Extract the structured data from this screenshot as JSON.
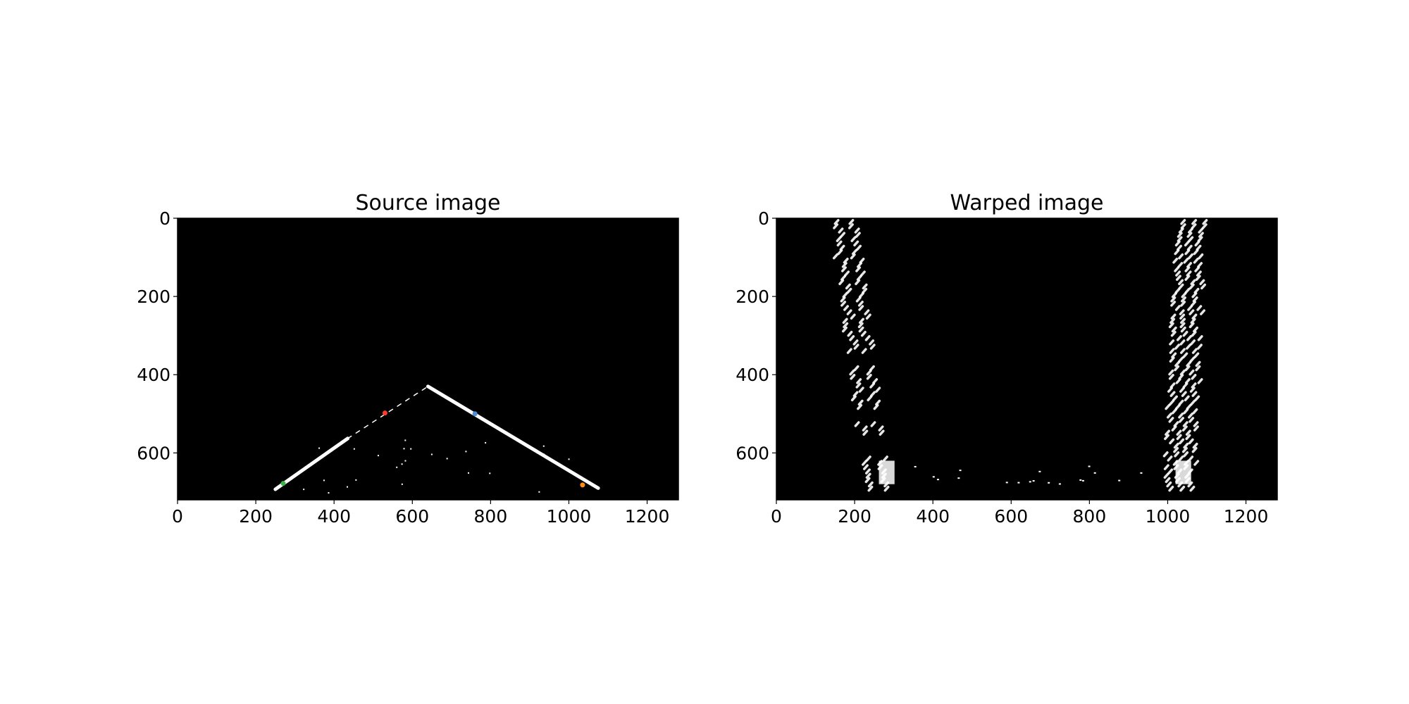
{
  "chart_data": [
    {
      "type": "image",
      "title": "Source image",
      "xlim": [
        0,
        1280
      ],
      "ylim": [
        720,
        0
      ],
      "xticks": [
        0,
        200,
        400,
        600,
        800,
        1000,
        1200
      ],
      "yticks": [
        0,
        200,
        400,
        600
      ],
      "background_color": "#000000",
      "lane_lines": [
        {
          "x": [
            250,
            435
          ],
          "y": [
            693,
            563
          ]
        },
        {
          "x": [
            640,
            1075
          ],
          "y": [
            430,
            690
          ]
        },
        {
          "x": [
            435,
            640
          ],
          "y": [
            563,
            430
          ]
        }
      ],
      "markers": [
        {
          "x": 530,
          "y": 498,
          "color": "#ff3b30"
        },
        {
          "x": 760,
          "y": 500,
          "color": "#4a90d9"
        },
        {
          "x": 1035,
          "y": 682,
          "color": "#ff8c1a"
        },
        {
          "x": 270,
          "y": 678,
          "color": "#3cb44b"
        }
      ]
    },
    {
      "type": "image",
      "title": "Warped image",
      "xlim": [
        0,
        1280
      ],
      "ylim": [
        720,
        0
      ],
      "xticks": [
        0,
        200,
        400,
        600,
        800,
        1000,
        1200
      ],
      "yticks": [
        0,
        200,
        400,
        600
      ],
      "background_color": "#000000",
      "lane_bands": [
        {
          "x_top": 190,
          "x_bottom": 275,
          "width": 40
        },
        {
          "x_top": 1070,
          "x_bottom": 1040,
          "width": 40
        }
      ]
    }
  ]
}
